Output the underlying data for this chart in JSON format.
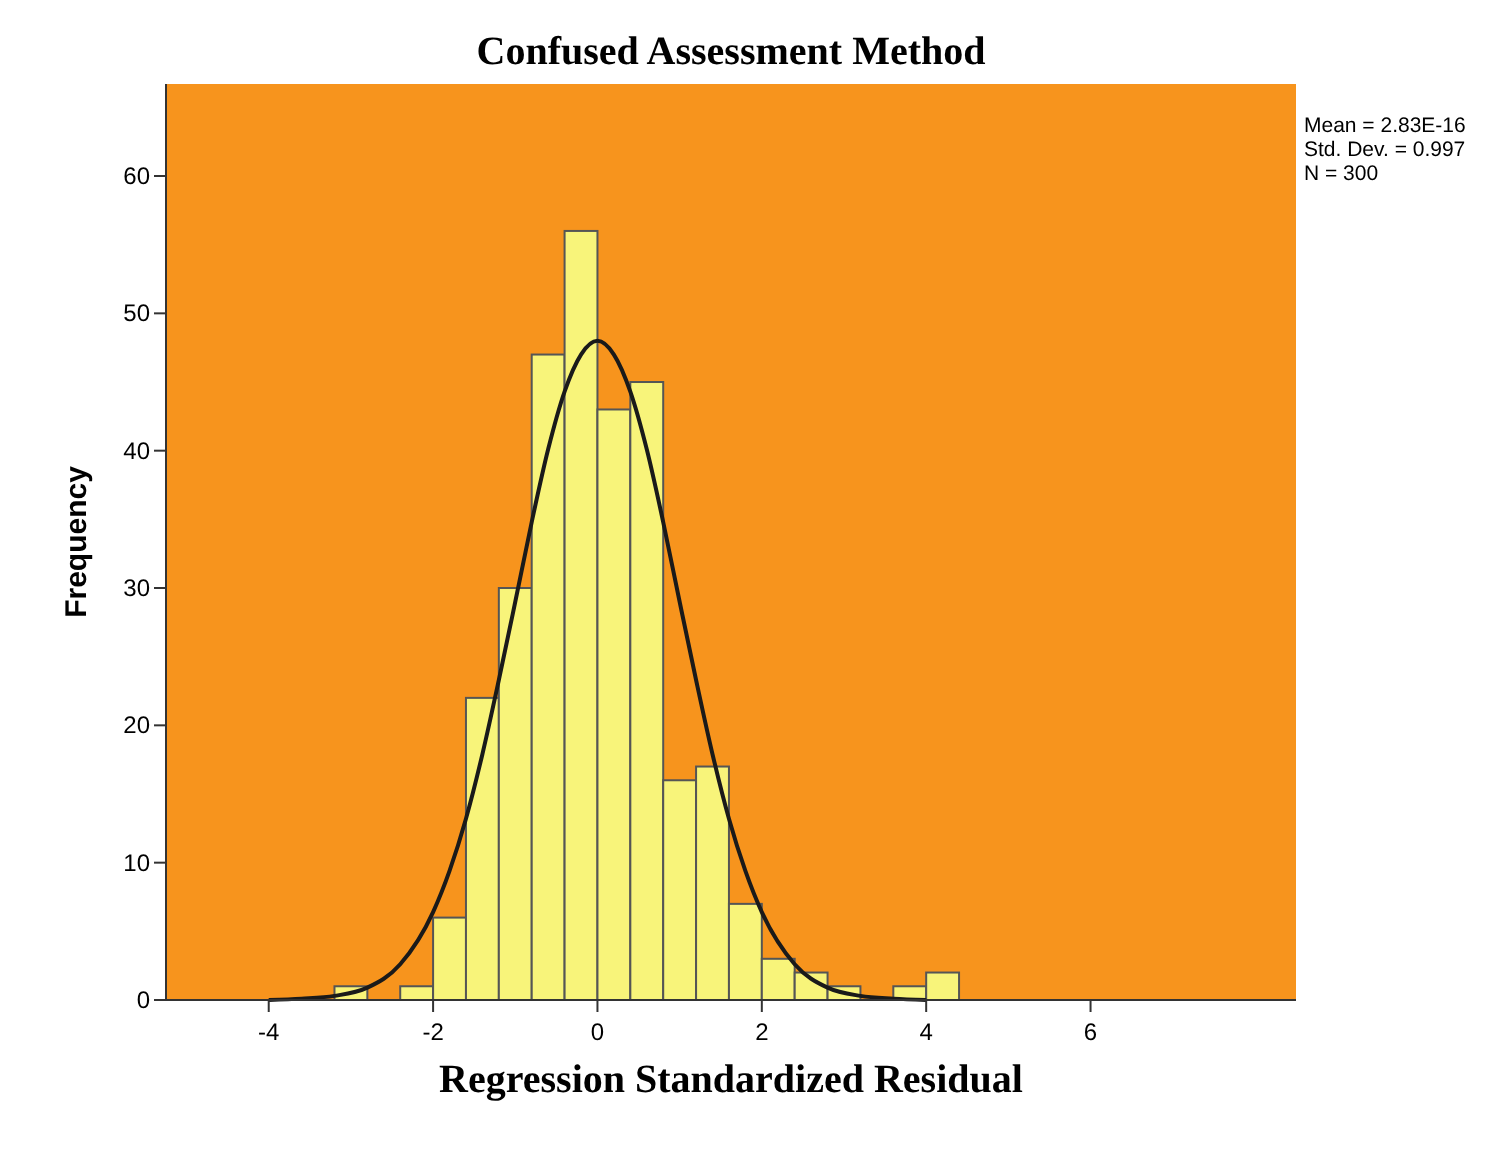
{
  "chart_data": {
    "type": "histogram",
    "title": "Confused Assessment Method",
    "xlabel": "Regression Standardized Residual",
    "ylabel": "Frequency",
    "annotations": [
      "Mean = 2.83E-16",
      "Std. Dev. = 0.997",
      "N = 300"
    ],
    "series": [
      {
        "color": "#f8f47a",
        "bins": [
          -3.2,
          -2.8,
          -2.4,
          -2.0,
          -1.6,
          -1.2,
          -0.8,
          -0.4,
          0,
          0.4,
          0.8,
          1.2,
          1.6,
          2.0,
          2.4,
          2.8,
          3.2,
          3.6,
          4.0,
          4.4
        ],
        "values": [
          1,
          0,
          1,
          6,
          22,
          30,
          47,
          56,
          43,
          45,
          16,
          17,
          7,
          3,
          2,
          1,
          0,
          1,
          2
        ]
      },
      {
        "type": "line",
        "color": "#1a1a1a",
        "x": [
          -4.0,
          -3.6,
          -3.2,
          -2.8,
          -2.4,
          -2.0,
          -1.8,
          -1.6,
          -1.4,
          -1.2,
          -1.0,
          -0.8,
          -0.6,
          -0.4,
          -0.2,
          0,
          0.2,
          0.4,
          0.6,
          0.8,
          1.0,
          1.2,
          1.4,
          1.6,
          1.8,
          2.0,
          2.4,
          2.8,
          3.2,
          3.6,
          4.0
        ],
        "values": [
          0,
          0.1,
          0.3,
          0.9,
          2.6,
          6.4,
          9.4,
          13.2,
          17.9,
          23.3,
          29.0,
          34.8,
          40.1,
          44.3,
          47.0,
          48.0,
          47.0,
          44.3,
          40.1,
          34.8,
          29.0,
          23.3,
          17.9,
          13.2,
          9.4,
          6.4,
          2.6,
          0.9,
          0.3,
          0.1,
          0
        ]
      }
    ],
    "xlim": [
      -5.25,
      8.5
    ],
    "xticks": [
      -4,
      -2,
      0,
      2,
      4,
      6
    ],
    "ylim": [
      0,
      66.7
    ],
    "yticks": [
      0,
      10,
      20,
      30,
      40,
      50,
      60
    ],
    "grid": false
  }
}
